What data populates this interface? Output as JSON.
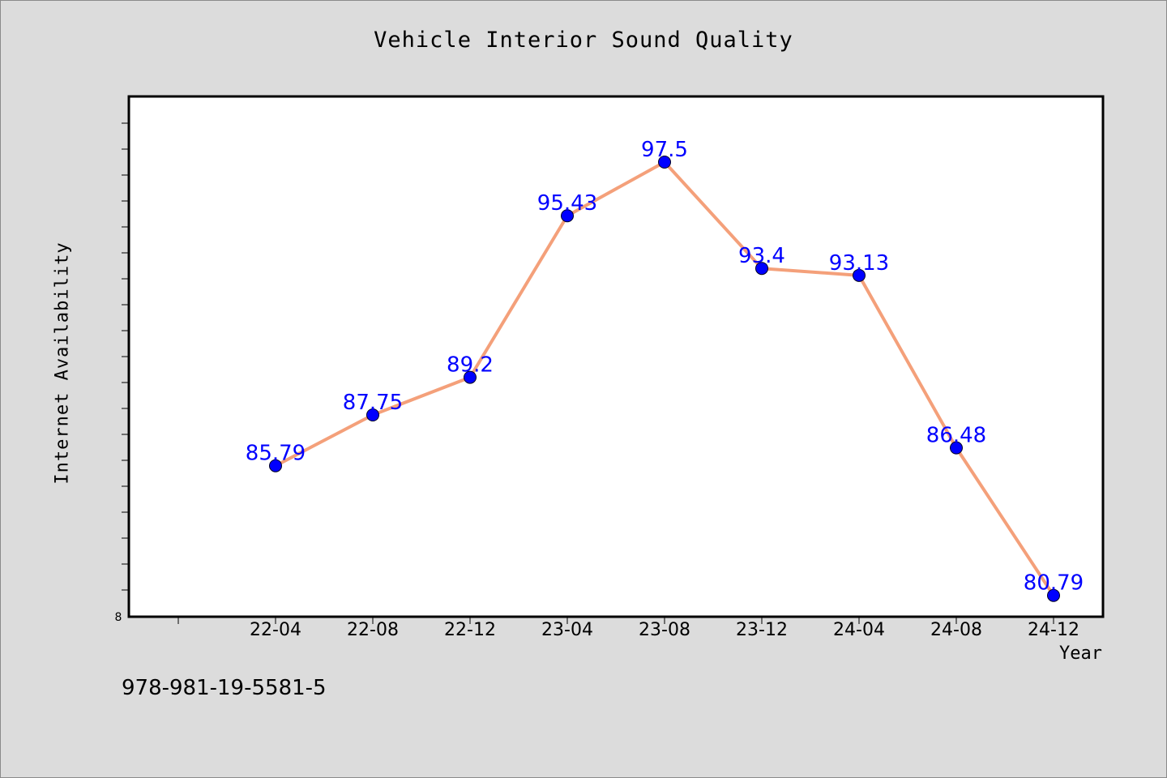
{
  "chart_data": {
    "type": "line",
    "title": "Vehicle Interior Sound Quality",
    "xlabel": "Year",
    "ylabel": "Internet Availability",
    "categories": [
      "22-04",
      "22-08",
      "22-12",
      "23-04",
      "23-08",
      "23-12",
      "24-04",
      "24-08",
      "24-12"
    ],
    "series": [
      {
        "values": [
          85.79,
          87.75,
          89.2,
          95.43,
          97.5,
          93.4,
          93.13,
          86.48,
          80.79
        ]
      }
    ],
    "data_labels": [
      "85.79",
      "87.75",
      "89.2",
      "95.43",
      "97.5",
      "93.4",
      "93.13",
      "86.48",
      "80.79"
    ],
    "ylim": [
      80,
      100
    ],
    "y_tick_label": "8",
    "grid": false,
    "legend": "none",
    "colors": {
      "line": "#f4a07a",
      "marker": "#0000ff",
      "data_label": "#0000ff",
      "plot_background": "#ffffff",
      "page_background": "#dcdcdc"
    }
  },
  "footer": {
    "code": "978-981-19-5581-5"
  }
}
